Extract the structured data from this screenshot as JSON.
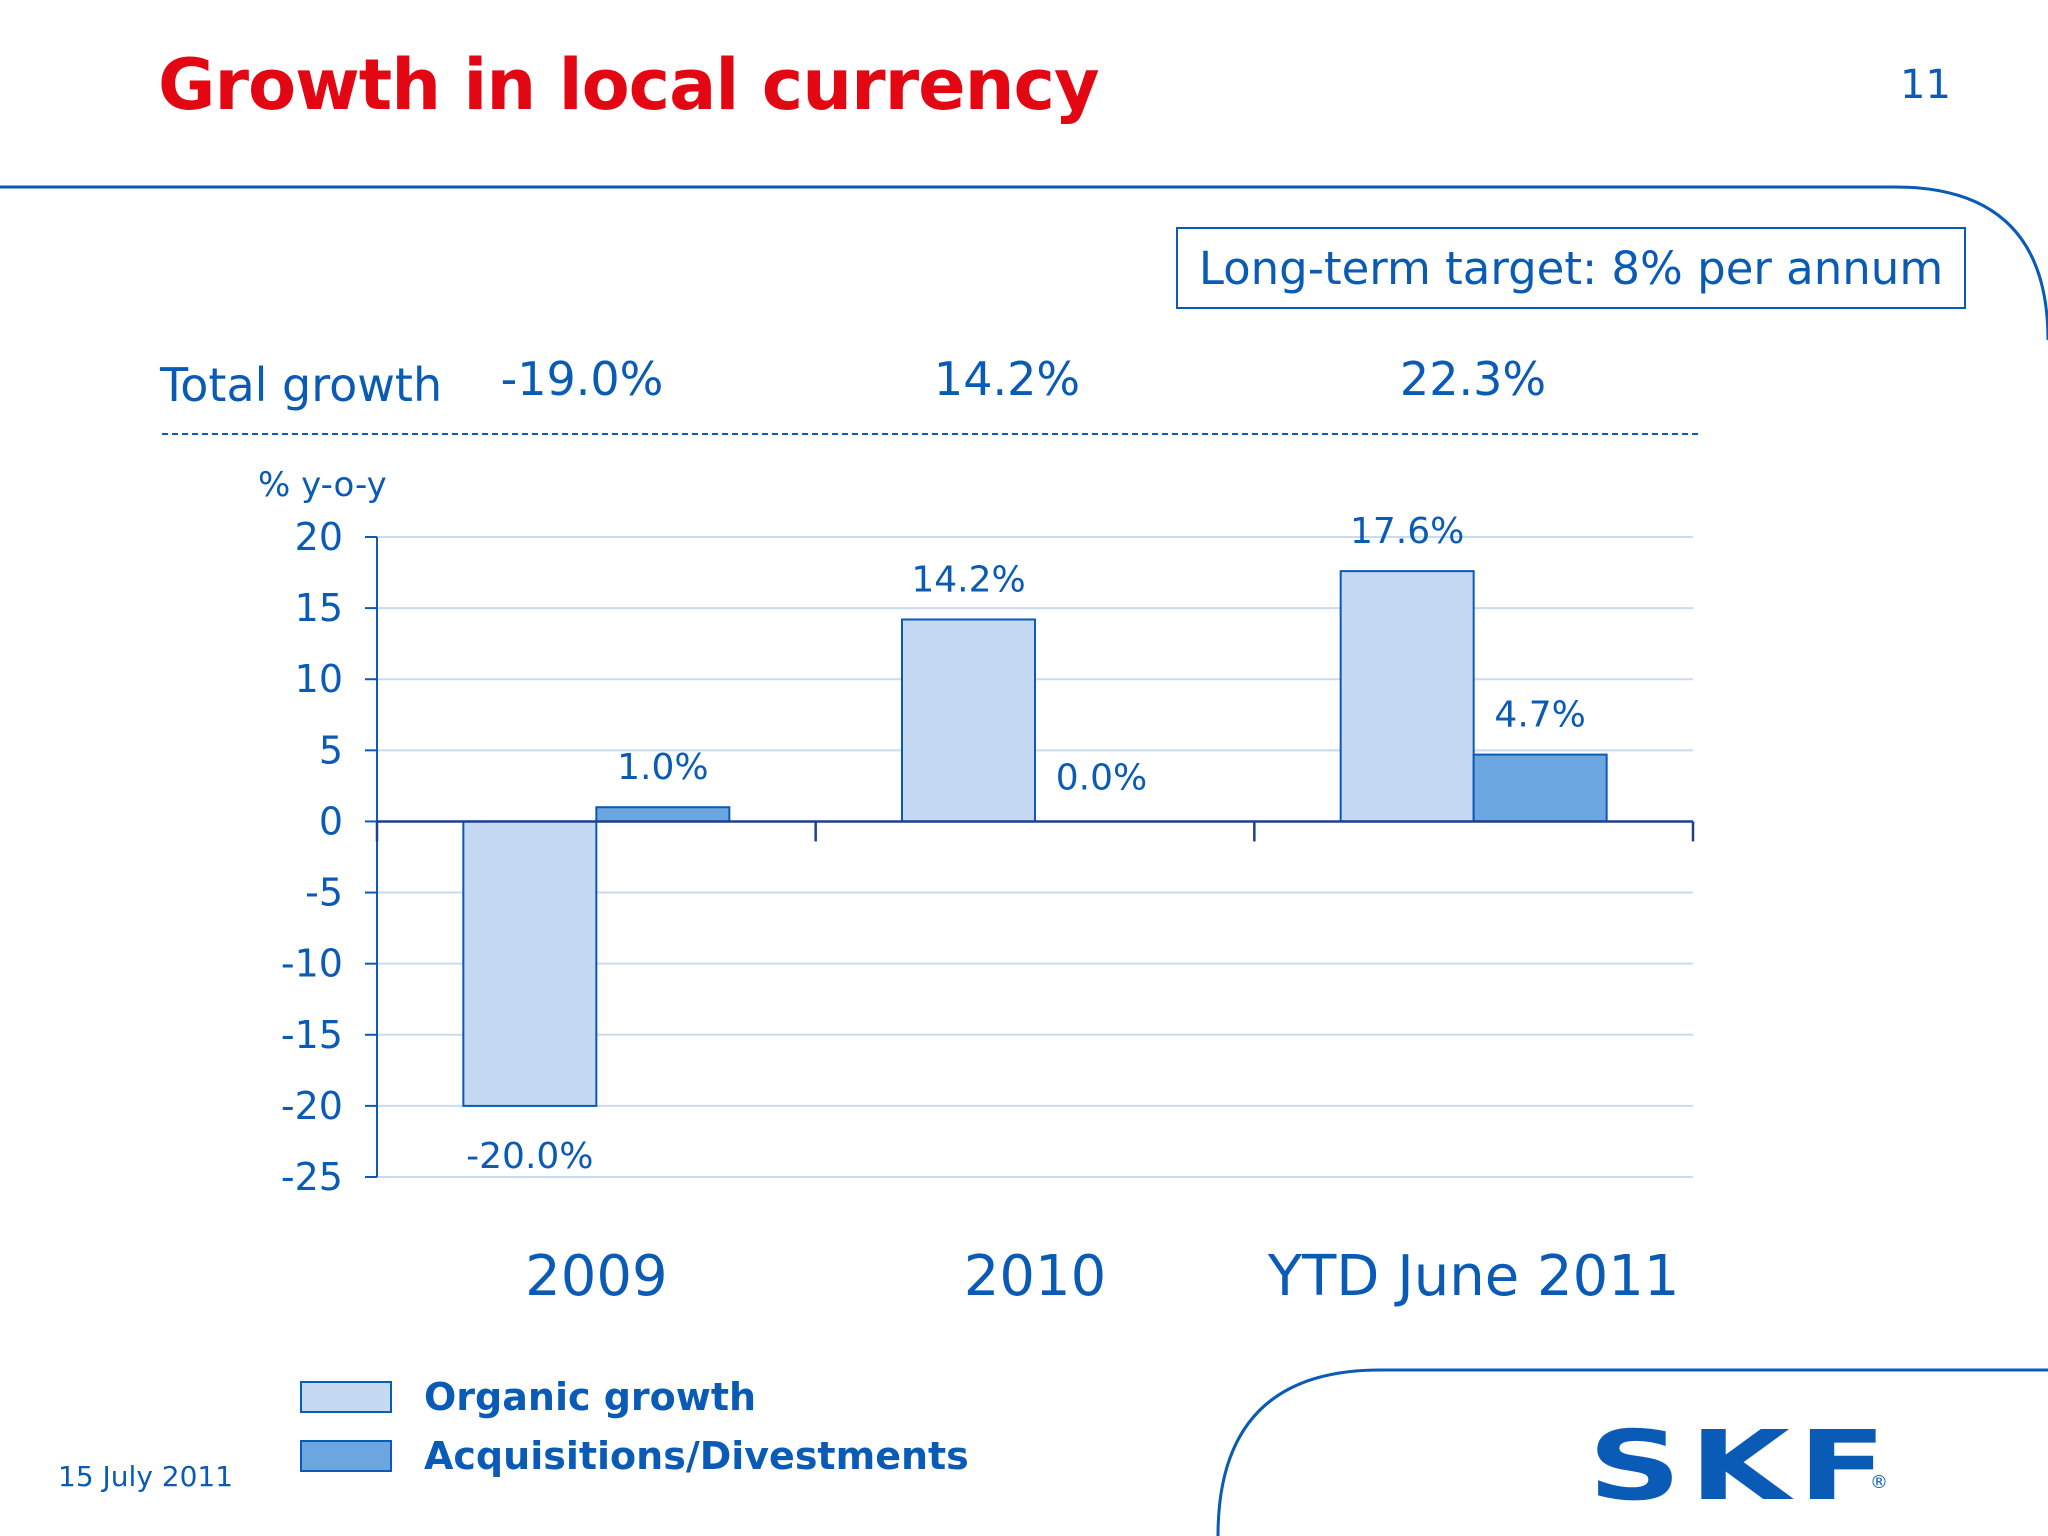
{
  "slide": {
    "title": "Growth in local currency",
    "page_number": "11",
    "date": "15 July 2011",
    "target_box": "Long-term target: 8% per annum",
    "logo_text": "SKF",
    "logo_mark": "®"
  },
  "total_growth": {
    "label": "Total growth",
    "values": [
      "-19.0%",
      "14.2%",
      "22.3%"
    ]
  },
  "legend": {
    "items": [
      "Organic growth",
      "Acquisitions/Divestments"
    ]
  },
  "colors": {
    "title_red": "#e30613",
    "brand_blue": "#0a5bb5",
    "organic_fill": "#c5d9f3",
    "acquisitions_fill": "#6ba6e0",
    "grid": "#c9dbef"
  },
  "chart_data": {
    "type": "bar",
    "ylabel": "% y-o-y",
    "ylim": [
      -25,
      20
    ],
    "yticks": [
      20,
      15,
      10,
      5,
      0,
      -5,
      -10,
      -15,
      -20,
      -25
    ],
    "grid": true,
    "legend_position": "bottom-left",
    "categories": [
      "2009",
      "2010",
      "YTD June 2011"
    ],
    "series": [
      {
        "name": "Organic growth",
        "values": [
          -20.0,
          14.2,
          17.6
        ],
        "labels": [
          "-20.0%",
          "14.2%",
          "17.6%"
        ]
      },
      {
        "name": "Acquisitions/Divestments",
        "values": [
          1.0,
          0.0,
          4.7
        ],
        "labels": [
          "1.0%",
          "0.0%",
          "4.7%"
        ]
      }
    ]
  }
}
